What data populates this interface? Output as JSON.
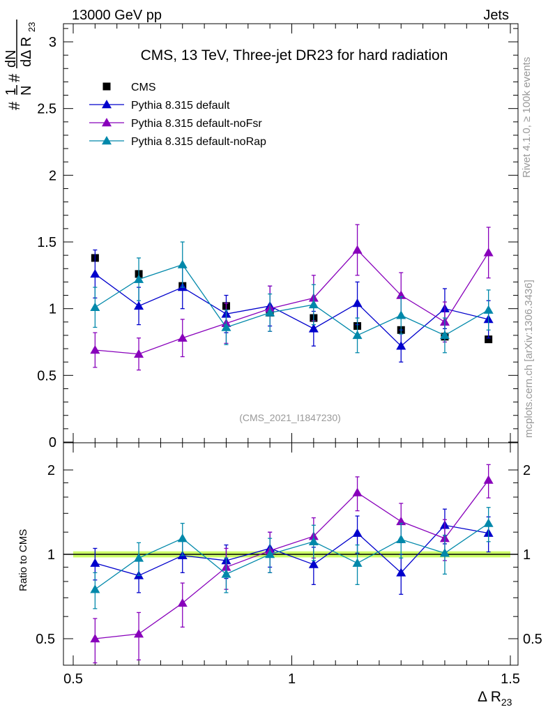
{
  "header": {
    "left": "13000 GeV pp",
    "right": "Jets"
  },
  "side_labels": {
    "rivet": "Rivet 4.1.0, ≥ 100k events",
    "site": "mcplots.cern.ch [arXiv:1306.3436]"
  },
  "chart_data": [
    {
      "type": "scatter",
      "panel": "main",
      "title": "CMS, 13 TeV, Three-jet DR23 for hard radiation",
      "annotation": "(CMS_2021_I1847230)",
      "xlabel": "Δ R",
      "xlabel_sub": "23",
      "ylabel": "# 1/N # dN/dΔ R23",
      "xlim": [
        0.5,
        1.5
      ],
      "ylim": [
        0,
        3.15
      ],
      "y_ticks": [
        0,
        0.5,
        1,
        1.5,
        2,
        2.5,
        3
      ],
      "y_tick_labels": [
        "0",
        "0.5",
        "1",
        "1.5",
        "2",
        "2.5",
        "3"
      ],
      "x": [
        0.55,
        0.65,
        0.75,
        0.85,
        0.95,
        1.05,
        1.15,
        1.25,
        1.35,
        1.45
      ],
      "legend": [
        "CMS",
        "Pythia 8.315 default",
        "Pythia 8.315 default-noFsr",
        "Pythia 8.315 default-noRap"
      ],
      "series": [
        {
          "name": "CMS",
          "color": "#000000",
          "marker": "square",
          "values": [
            1.38,
            1.26,
            1.17,
            1.02,
            0.97,
            0.93,
            0.87,
            0.84,
            0.79,
            0.77
          ],
          "errors": [
            0.02,
            0.02,
            0.02,
            0.02,
            0.02,
            0.02,
            0.02,
            0.02,
            0.02,
            0.02
          ]
        },
        {
          "name": "Pythia 8.315 default",
          "color": "#0000cc",
          "marker": "triangle",
          "values": [
            1.26,
            1.02,
            1.16,
            0.96,
            1.02,
            0.85,
            1.04,
            0.72,
            1.0,
            0.92
          ],
          "errors": [
            0.18,
            0.14,
            0.16,
            0.14,
            0.15,
            0.13,
            0.16,
            0.12,
            0.15,
            0.14
          ]
        },
        {
          "name": "Pythia 8.315 default-noFsr",
          "color": "#8800bb",
          "marker": "triangle",
          "values": [
            0.69,
            0.66,
            0.78,
            0.89,
            1.0,
            1.08,
            1.44,
            1.1,
            0.9,
            1.42
          ],
          "errors": [
            0.13,
            0.12,
            0.14,
            0.15,
            0.17,
            0.17,
            0.19,
            0.17,
            0.15,
            0.19
          ]
        },
        {
          "name": "Pythia 8.315 default-noRap",
          "color": "#0088aa",
          "marker": "triangle",
          "values": [
            1.01,
            1.22,
            1.33,
            0.86,
            0.97,
            1.03,
            0.8,
            0.95,
            0.8,
            0.99
          ],
          "errors": [
            0.15,
            0.16,
            0.17,
            0.13,
            0.14,
            0.15,
            0.13,
            0.14,
            0.13,
            0.15
          ]
        }
      ]
    },
    {
      "type": "scatter",
      "panel": "ratio",
      "ylabel": "Ratio to CMS",
      "xlim": [
        0.5,
        1.5
      ],
      "ylim": [
        0.4,
        2.3
      ],
      "y_scale": "log",
      "y_ticks": [
        0.5,
        1,
        2
      ],
      "y_tick_labels": [
        "0.5",
        "1",
        "2"
      ],
      "x_ticks": [
        0.5,
        1,
        1.5
      ],
      "x_tick_labels": [
        "0.5",
        "1",
        "1.5"
      ],
      "x": [
        0.55,
        0.65,
        0.75,
        0.85,
        0.95,
        1.05,
        1.15,
        1.25,
        1.35,
        1.45
      ],
      "reference": {
        "value": 1,
        "band": 0.025,
        "band_color": "#ccff66"
      },
      "series": [
        {
          "name": "Pythia 8.315 default",
          "color": "#0000cc",
          "values": [
            0.93,
            0.84,
            0.99,
            0.95,
            1.05,
            0.92,
            1.19,
            0.86,
            1.27,
            1.19
          ],
          "errors": [
            0.12,
            0.11,
            0.13,
            0.13,
            0.15,
            0.14,
            0.18,
            0.14,
            0.18,
            0.17
          ]
        },
        {
          "name": "Pythia 8.315 default-noFsr",
          "color": "#8800bb",
          "values": [
            0.5,
            0.52,
            0.67,
            0.9,
            1.03,
            1.16,
            1.66,
            1.31,
            1.14,
            1.84
          ],
          "errors": [
            0.09,
            0.1,
            0.12,
            0.15,
            0.17,
            0.19,
            0.23,
            0.21,
            0.19,
            0.25
          ]
        },
        {
          "name": "Pythia 8.315 default-noRap",
          "color": "#0088aa",
          "values": [
            0.75,
            0.97,
            1.14,
            0.85,
            1.0,
            1.11,
            0.93,
            1.13,
            1.01,
            1.29
          ],
          "errors": [
            0.11,
            0.13,
            0.15,
            0.12,
            0.14,
            0.16,
            0.15,
            0.16,
            0.16,
            0.18
          ]
        }
      ]
    }
  ]
}
